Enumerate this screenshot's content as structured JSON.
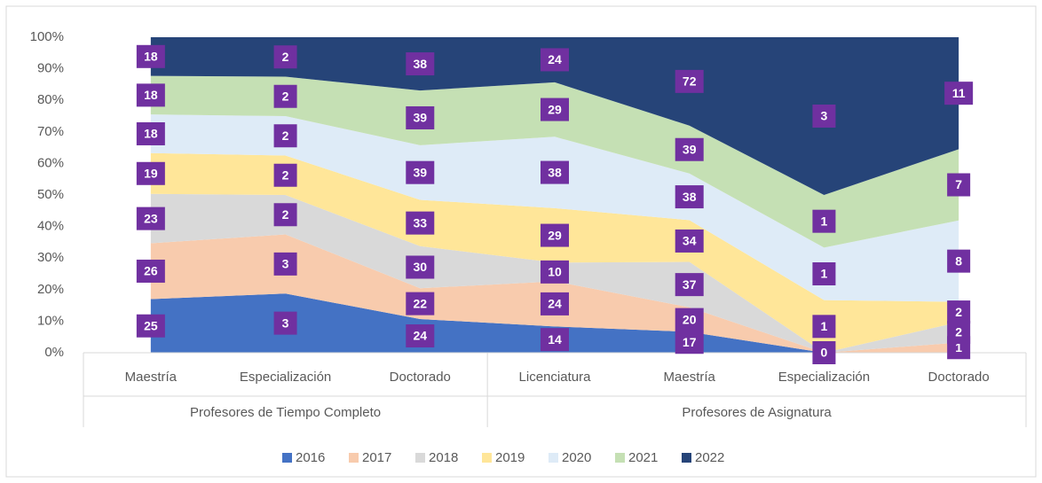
{
  "chart_data": {
    "type": "stacked_area_100",
    "groups": [
      {
        "name": "Profesores de Tiempo Completo",
        "categories": [
          "Maestría",
          "Especialización",
          "Doctorado"
        ]
      },
      {
        "name": "Profesores de Asignatura",
        "categories": [
          "Licenciatura",
          "Maestría",
          "Especialización",
          "Doctorado"
        ]
      }
    ],
    "series": [
      {
        "name": "2016",
        "color": "#4472c4",
        "values": [
          25,
          3,
          24,
          14,
          17,
          0,
          0
        ],
        "value_labels": [
          "25",
          "3",
          "24",
          "14",
          "17",
          "0",
          null
        ]
      },
      {
        "name": "2017",
        "color": "#f8cbad",
        "values": [
          26,
          3,
          22,
          24,
          20,
          0,
          1
        ],
        "value_labels": [
          "26",
          "3",
          "22",
          "24",
          "20",
          null,
          "1"
        ]
      },
      {
        "name": "2018",
        "color": "#d9d9d9",
        "values": [
          23,
          2,
          30,
          10,
          37,
          0,
          2
        ],
        "value_labels": [
          "23",
          "2",
          "30",
          "10",
          "37",
          null,
          "2"
        ]
      },
      {
        "name": "2019",
        "color": "#ffe699",
        "values": [
          19,
          2,
          33,
          29,
          34,
          1,
          2
        ]
      },
      {
        "name": "2020",
        "color": "#deebf7",
        "values": [
          18,
          2,
          39,
          38,
          38,
          1,
          8
        ]
      },
      {
        "name": "2021",
        "color": "#c5e0b4",
        "values": [
          18,
          2,
          39,
          29,
          39,
          1,
          7
        ]
      },
      {
        "name": "2022",
        "color": "#264478",
        "values": [
          18,
          2,
          38,
          24,
          72,
          3,
          11
        ]
      }
    ],
    "label_color": "#7030a0",
    "ylim": [
      0,
      100
    ],
    "yticks": [
      {
        "value": 0,
        "label": "0%"
      },
      {
        "value": 10,
        "label": "10%"
      },
      {
        "value": 20,
        "label": "20%"
      },
      {
        "value": 30,
        "label": "30%"
      },
      {
        "value": 40,
        "label": "40%"
      },
      {
        "value": 50,
        "label": "50%"
      },
      {
        "value": 60,
        "label": "60%"
      },
      {
        "value": 70,
        "label": "70%"
      },
      {
        "value": 80,
        "label": "80%"
      },
      {
        "value": 90,
        "label": "90%"
      },
      {
        "value": 100,
        "label": "100%"
      }
    ],
    "legend": "bottom"
  }
}
